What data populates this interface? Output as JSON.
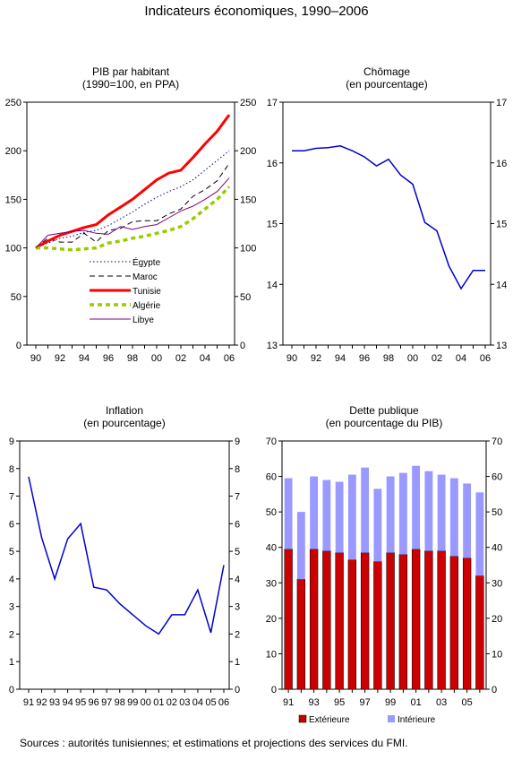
{
  "page": {
    "title": "Indicateurs économiques, 1990–2006",
    "source": "Sources : autorités tunisiennes; et estimations et projections des services du FMI."
  },
  "colors": {
    "egypte": "#00008b",
    "maroc": "#000000",
    "tunisie": "#ff0000",
    "algerie": "#99cc00",
    "libye": "#800080",
    "line_blue": "#0000cc",
    "exterieure": "#cc0000",
    "interieure": "#9999ff"
  },
  "chart_data": [
    {
      "id": "pib",
      "type": "line",
      "title_line1": "PIB par habitant",
      "title_line2": "(1990=100, en PPA)",
      "x": [
        1990,
        1991,
        1992,
        1993,
        1994,
        1995,
        1996,
        1997,
        1998,
        1999,
        2000,
        2001,
        2002,
        2003,
        2004,
        2005,
        2006
      ],
      "x_tick_labels": [
        "90",
        "92",
        "94",
        "96",
        "98",
        "00",
        "02",
        "04",
        "06"
      ],
      "ylim": [
        0,
        250
      ],
      "y_ticks": [
        0,
        50,
        100,
        150,
        200,
        250
      ],
      "series": [
        {
          "name": "Égypte",
          "style": "dotted",
          "values": [
            100,
            105,
            110,
            112,
            116,
            118,
            123,
            130,
            137,
            145,
            152,
            158,
            163,
            170,
            180,
            190,
            200
          ]
        },
        {
          "name": "Maroc",
          "style": "dashed",
          "values": [
            100,
            110,
            106,
            106,
            115,
            106,
            118,
            120,
            127,
            128,
            128,
            135,
            140,
            153,
            160,
            169,
            187
          ]
        },
        {
          "name": "Tunisie",
          "style": "solid-thick",
          "values": [
            100,
            107,
            113,
            117,
            121,
            124,
            134,
            142,
            150,
            160,
            170,
            177,
            180,
            193,
            207,
            220,
            237
          ]
        },
        {
          "name": "Algérie",
          "style": "dashed-thick",
          "values": [
            100,
            100,
            99,
            98,
            99,
            100,
            105,
            107,
            110,
            112,
            115,
            118,
            122,
            130,
            140,
            150,
            163
          ]
        },
        {
          "name": "Libye",
          "style": "solid-thin",
          "values": [
            100,
            113,
            115,
            117,
            118,
            115,
            114,
            122,
            119,
            122,
            124,
            131,
            138,
            143,
            150,
            158,
            172
          ]
        }
      ]
    },
    {
      "id": "chomage",
      "type": "line",
      "title_line1": "Chômage",
      "title_line2": "(en pourcentage)",
      "x": [
        1990,
        1991,
        1992,
        1993,
        1994,
        1995,
        1996,
        1997,
        1998,
        1999,
        2000,
        2001,
        2002,
        2003,
        2004,
        2005,
        2006
      ],
      "x_tick_labels": [
        "90",
        "92",
        "94",
        "96",
        "98",
        "00",
        "02",
        "04",
        "06"
      ],
      "ylim": [
        13,
        17
      ],
      "y_ticks": [
        13,
        14,
        15,
        16,
        17
      ],
      "series": [
        {
          "name": "",
          "values": [
            16.2,
            16.2,
            16.24,
            16.25,
            16.28,
            16.2,
            16.1,
            15.95,
            16.06,
            15.8,
            15.65,
            15.02,
            14.88,
            14.3,
            13.93,
            14.23,
            14.23
          ]
        }
      ]
    },
    {
      "id": "inflation",
      "type": "line",
      "title_line1": "Inflation",
      "title_line2": "(en pourcentage)",
      "x": [
        1991,
        1992,
        1993,
        1994,
        1995,
        1996,
        1997,
        1998,
        1999,
        2000,
        2001,
        2002,
        2003,
        2004,
        2005,
        2006
      ],
      "x_tick_labels": [
        "91",
        "92",
        "93",
        "94",
        "95",
        "96",
        "97",
        "98",
        "99",
        "00",
        "01",
        "02",
        "03",
        "04",
        "05",
        "06"
      ],
      "ylim": [
        0,
        9
      ],
      "y_ticks": [
        0,
        1,
        2,
        3,
        4,
        5,
        6,
        7,
        8,
        9
      ],
      "series": [
        {
          "name": "",
          "values": [
            7.7,
            5.5,
            4.0,
            5.45,
            6.0,
            3.7,
            3.6,
            3.1,
            2.7,
            2.3,
            2.0,
            2.7,
            2.7,
            3.6,
            2.05,
            4.5
          ]
        }
      ]
    },
    {
      "id": "dette",
      "type": "bar",
      "stacked": true,
      "title_line1": "Dette publique",
      "title_line2": "(en pourcentage du PIB)",
      "categories": [
        "1991",
        "1992",
        "1993",
        "1994",
        "1995",
        "1996",
        "1997",
        "1998",
        "1999",
        "2000",
        "2001",
        "2002",
        "2003",
        "2004",
        "2005",
        "2006"
      ],
      "x_tick_labels": [
        "91",
        "93",
        "95",
        "97",
        "99",
        "01",
        "03",
        "05"
      ],
      "ylim": [
        0,
        70
      ],
      "y_ticks": [
        0,
        10,
        20,
        30,
        40,
        50,
        60,
        70
      ],
      "series": [
        {
          "name": "Extérieure",
          "values": [
            39.5,
            31.0,
            39.5,
            39.0,
            38.5,
            36.5,
            38.5,
            36.0,
            38.5,
            38.0,
            39.5,
            39.0,
            39.0,
            37.5,
            37.0,
            32.0
          ]
        },
        {
          "name": "Intérieure",
          "values": [
            20.0,
            19.0,
            20.5,
            20.0,
            20.0,
            24.0,
            24.0,
            20.5,
            21.5,
            23.0,
            23.5,
            22.5,
            21.5,
            22.0,
            21.0,
            23.5
          ]
        }
      ]
    }
  ]
}
